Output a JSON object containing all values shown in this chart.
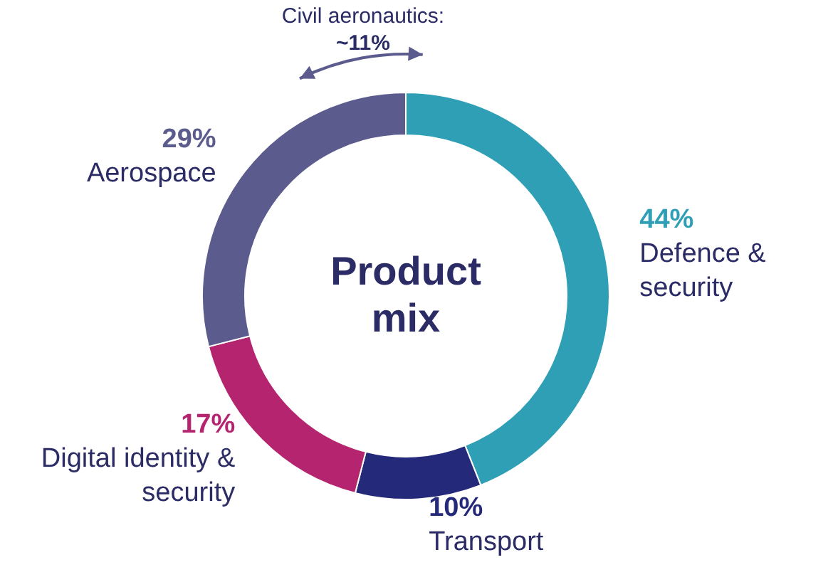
{
  "chart_data": {
    "type": "donut",
    "title": "Product mix",
    "categories": [
      "Defence & security",
      "Transport",
      "Digital identity & security",
      "Aerospace"
    ],
    "values": [
      44,
      10,
      17,
      29
    ],
    "colors": [
      "#2f9fb6",
      "#25297a",
      "#b5256f",
      "#5b5b8e"
    ],
    "value_labels": [
      "44%",
      "10%",
      "17%",
      "29%"
    ],
    "annotations": [
      "Civil aeronautics:\n~11%"
    ]
  }
}
